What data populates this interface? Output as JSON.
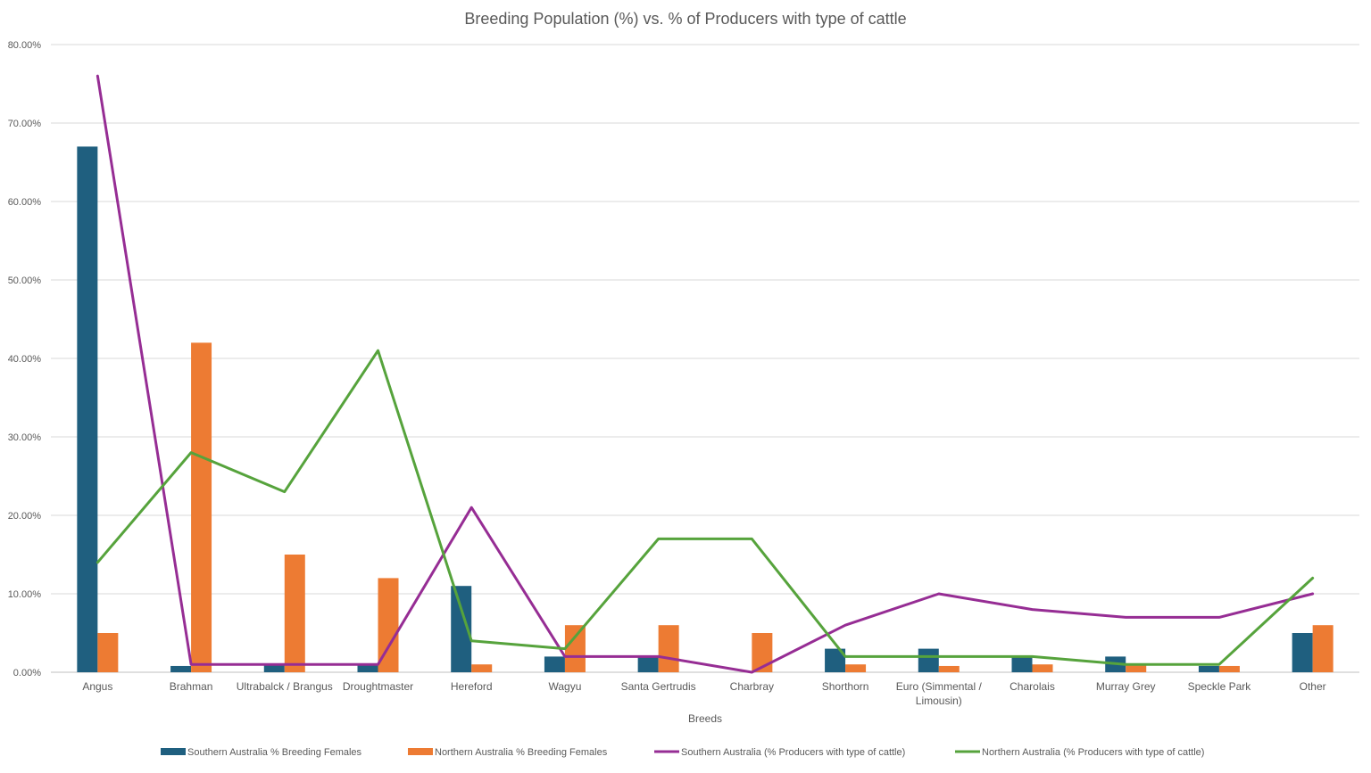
{
  "colors": {
    "south_bar": "#1F5F7F",
    "north_bar": "#ED7B33",
    "south_line": "#962D94",
    "north_line": "#56A33C",
    "gridline": "#D9D9D9",
    "text": "#595959"
  },
  "chart_data": {
    "type": "bar",
    "title": "Breeding Population (%) vs. % of Producers with type of cattle",
    "xlabel": "Breeds",
    "ylabel": "",
    "ylim": [
      0,
      80
    ],
    "y_ticks": [
      "0.00%",
      "10.00%",
      "20.00%",
      "30.00%",
      "40.00%",
      "50.00%",
      "60.00%",
      "70.00%",
      "80.00%"
    ],
    "grid": true,
    "legend_position": "bottom",
    "categories": [
      [
        "Angus"
      ],
      [
        "Brahman"
      ],
      [
        "Ultrabalck / Brangus"
      ],
      [
        "Droughtmaster"
      ],
      [
        "Hereford"
      ],
      [
        "Wagyu"
      ],
      [
        "Santa Gertrudis"
      ],
      [
        "Charbray"
      ],
      [
        "Shorthorn"
      ],
      [
        "Euro (Simmental /",
        "Limousin)"
      ],
      [
        "Charolais"
      ],
      [
        "Murray Grey"
      ],
      [
        "Speckle Park"
      ],
      [
        "Other"
      ]
    ],
    "bar_series": [
      {
        "name": "Southern Australia % Breeding Females",
        "color_key": "south_bar",
        "values": [
          67,
          0.8,
          1,
          1,
          11,
          2,
          2,
          0,
          3,
          3,
          2,
          2,
          0.8,
          5
        ]
      },
      {
        "name": "Northern Australia % Breeding Females",
        "color_key": "north_bar",
        "values": [
          5,
          42,
          15,
          12,
          1,
          6,
          6,
          5,
          1,
          0.8,
          1,
          1,
          0.8,
          6
        ]
      }
    ],
    "line_series": [
      {
        "name": "Southern Australia (% Producers with type of cattle)",
        "color_key": "south_line",
        "values": [
          76,
          1,
          1,
          1,
          21,
          2,
          2,
          0,
          6,
          10,
          8,
          7,
          7,
          10
        ]
      },
      {
        "name": "Northern Australia (% Producers with type of cattle)",
        "color_key": "north_line",
        "values": [
          14,
          28,
          23,
          41,
          4,
          3,
          17,
          17,
          2,
          2,
          2,
          1,
          1,
          12
        ]
      }
    ]
  }
}
